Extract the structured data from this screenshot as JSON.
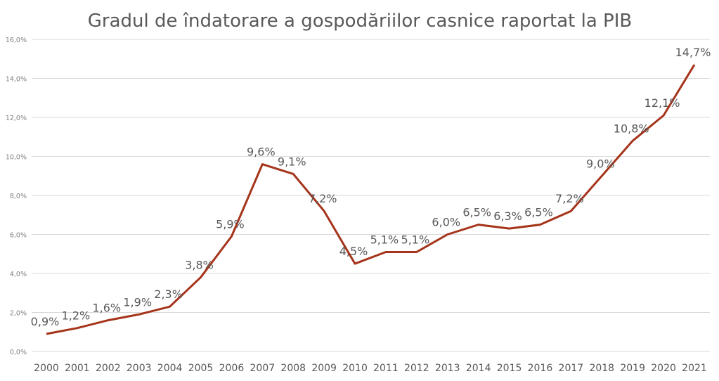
{
  "chart_data": {
    "type": "line",
    "title": "Gradul de îndatorare a gospodăriilor casnice raportat la PIB",
    "xlabel": "",
    "ylabel": "",
    "categories": [
      "2000",
      "2001",
      "2002",
      "2003",
      "2004",
      "2005",
      "2006",
      "2007",
      "2008",
      "2009",
      "2010",
      "2011",
      "2012",
      "2013",
      "2014",
      "2015",
      "2016",
      "2017",
      "2018",
      "2019",
      "2020",
      "2021"
    ],
    "series": [
      {
        "name": "Gradul de îndatorare",
        "values": [
          0.9,
          1.2,
          1.6,
          1.9,
          2.3,
          3.8,
          5.9,
          9.6,
          9.1,
          7.2,
          4.5,
          5.1,
          5.1,
          6.0,
          6.5,
          6.3,
          6.5,
          7.2,
          9.0,
          10.8,
          12.1,
          14.7
        ],
        "labels": [
          "0,9%",
          "1,2%",
          "1,6%",
          "1,9%",
          "2,3%",
          "3,8%",
          "5,9%",
          "9,6%",
          "9,1%",
          "7,2%",
          "4,5%",
          "5,1%",
          "5,1%",
          "6,0%",
          "6,5%",
          "6,3%",
          "6,5%",
          "7,2%",
          "9,0%",
          "10,8%",
          "12,1%",
          "14,7%"
        ],
        "color": "#A5341A"
      }
    ],
    "ylim": [
      0,
      16
    ],
    "yticks": [
      0,
      2,
      4,
      6,
      8,
      10,
      12,
      14,
      16
    ],
    "ytick_labels": [
      "0,0%",
      "2,0%",
      "4,0%",
      "6,0%",
      "8,0%",
      "10,0%",
      "12,0%",
      "14,0%",
      "16,0%"
    ],
    "grid": true,
    "legend": "none"
  }
}
